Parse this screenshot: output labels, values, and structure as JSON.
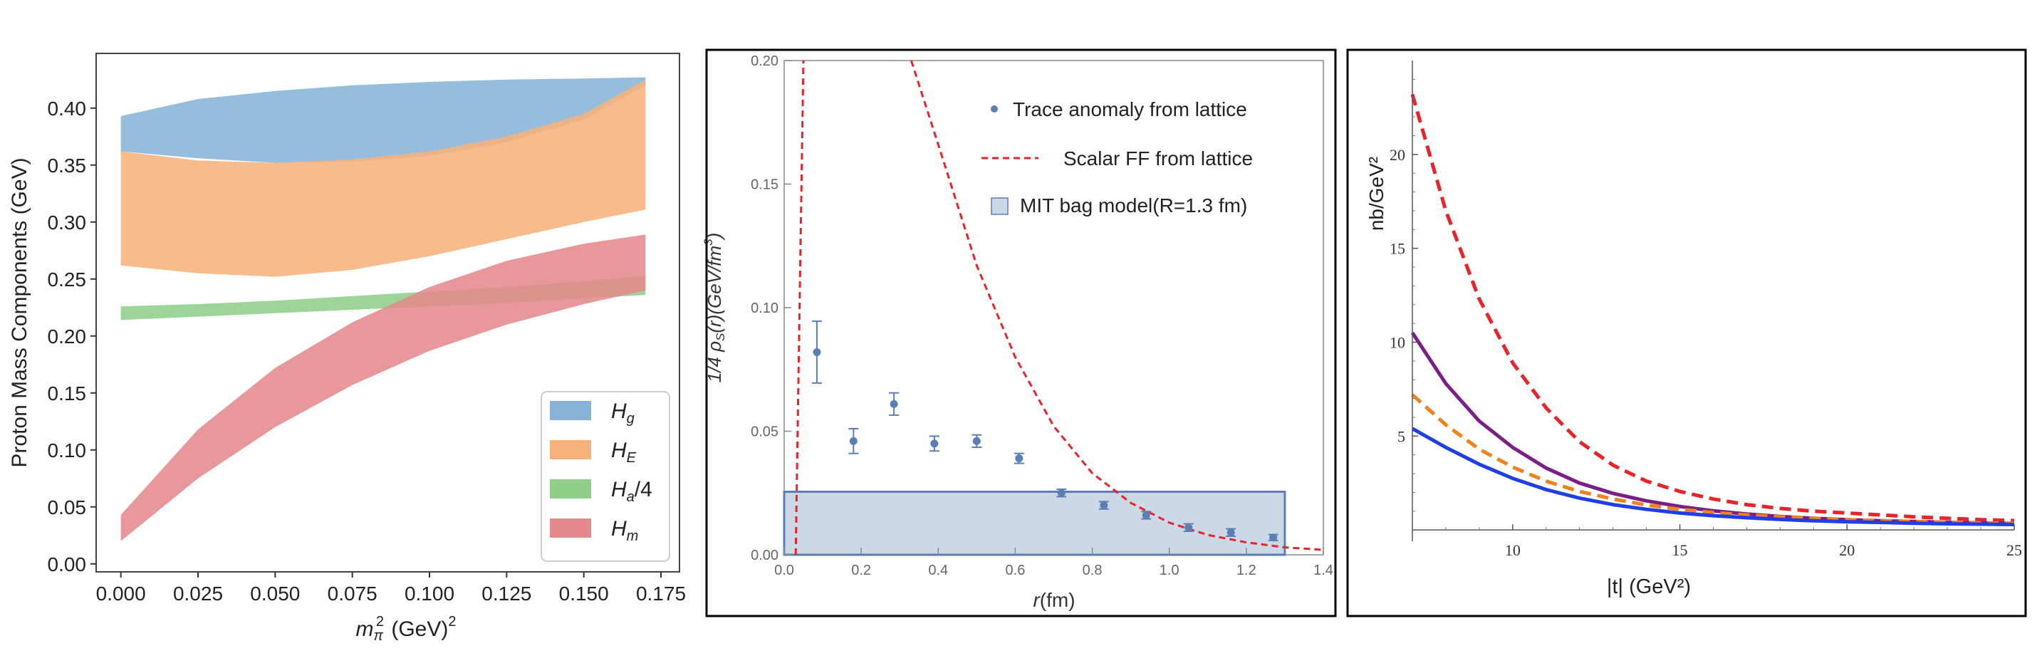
{
  "chart_data": [
    {
      "type": "area",
      "title": "",
      "xlabel": "m",
      "xlabel_sub": "π",
      "xlabel_sup": "2",
      "xlabel_units": " (GeV)",
      "xlabel_units_sup": "2",
      "ylabel": "Proton Mass Components (GeV)",
      "xlim": [
        -0.008,
        0.181
      ],
      "ylim": [
        -0.007,
        0.448
      ],
      "xticks": [
        0.0,
        0.025,
        0.05,
        0.075,
        0.1,
        0.125,
        0.15,
        0.175
      ],
      "xtick_labels": [
        "0.000",
        "0.025",
        "0.050",
        "0.075",
        "0.100",
        "0.125",
        "0.150",
        "0.175"
      ],
      "yticks": [
        0.0,
        0.05,
        0.1,
        0.15,
        0.2,
        0.25,
        0.3,
        0.35,
        0.4
      ],
      "ytick_labels": [
        "0.00",
        "0.05",
        "0.10",
        "0.15",
        "0.20",
        "0.25",
        "0.30",
        "0.35",
        "0.40"
      ],
      "legend_position": "bottom-right",
      "x": [
        0.0,
        0.025,
        0.05,
        0.075,
        0.1,
        0.125,
        0.15,
        0.17
      ],
      "series": [
        {
          "name": "H",
          "sub": "g",
          "suffix": "",
          "color": "#87b4d6",
          "upper": [
            0.393,
            0.408,
            0.415,
            0.42,
            0.423,
            0.425,
            0.426,
            0.427
          ],
          "lower": [
            0.362,
            0.356,
            0.352,
            0.353,
            0.358,
            0.37,
            0.39,
            0.42
          ]
        },
        {
          "name": "H",
          "sub": "E",
          "suffix": "",
          "color": "#f7b27c",
          "upper": [
            0.362,
            0.354,
            0.352,
            0.355,
            0.362,
            0.375,
            0.395,
            0.425
          ],
          "lower": [
            0.262,
            0.255,
            0.252,
            0.258,
            0.27,
            0.285,
            0.3,
            0.311
          ]
        },
        {
          "name": "H",
          "sub": "a",
          "suffix": "/4",
          "color": "#8fcf8a",
          "upper": [
            0.226,
            0.228,
            0.231,
            0.235,
            0.239,
            0.243,
            0.248,
            0.253
          ],
          "lower": [
            0.214,
            0.217,
            0.22,
            0.223,
            0.226,
            0.229,
            0.233,
            0.236
          ]
        },
        {
          "name": "H",
          "sub": "m",
          "suffix": "",
          "color": "#e58a8c",
          "upper": [
            0.043,
            0.118,
            0.172,
            0.212,
            0.243,
            0.266,
            0.281,
            0.289
          ],
          "lower": [
            0.02,
            0.075,
            0.12,
            0.157,
            0.187,
            0.21,
            0.228,
            0.24
          ]
        }
      ]
    },
    {
      "type": "scatter",
      "title": "",
      "xlabel": "r",
      "xlabel_units": "(fm)",
      "ylabel": "1/4 ρ",
      "ylabel_sub": "S",
      "ylabel_rest": "(r)(GeV/fm",
      "ylabel_sup": "3",
      "ylabel_end": ")",
      "xlim": [
        0.0,
        1.4
      ],
      "ylim": [
        0.0,
        0.2
      ],
      "xticks": [
        0.0,
        0.2,
        0.4,
        0.6,
        0.8,
        1.0,
        1.2,
        1.4
      ],
      "xtick_labels": [
        "0.0",
        "0.2",
        "0.4",
        "0.6",
        "0.8",
        "1.0",
        "1.2",
        "1.4"
      ],
      "yticks": [
        0.0,
        0.05,
        0.1,
        0.15,
        0.2
      ],
      "ytick_labels": [
        "0.00",
        "0.05",
        "0.10",
        "0.15",
        "0.20"
      ],
      "legend_position": "top-right",
      "legend": [
        "Trace anomaly from lattice",
        "Scalar FF from lattice",
        "MIT bag model(R=1.3 fm)"
      ],
      "lattice_points": {
        "name": "Trace anomaly from lattice",
        "color": "#5a7fb5",
        "x": [
          0.085,
          0.18,
          0.285,
          0.39,
          0.5,
          0.61,
          0.72,
          0.83,
          0.94,
          1.05,
          1.16,
          1.27
        ],
        "y": [
          0.082,
          0.046,
          0.061,
          0.045,
          0.046,
          0.039,
          0.025,
          0.02,
          0.016,
          0.011,
          0.009,
          0.007
        ],
        "err": [
          0.0125,
          0.005,
          0.0045,
          0.003,
          0.0025,
          0.002,
          0.0015,
          0.0015,
          0.0015,
          0.0015,
          0.0015,
          0.0012
        ]
      },
      "scalar_ff": {
        "name": "Scalar FF from lattice",
        "color": "#e8232a",
        "x": [
          0.03,
          0.05,
          0.1,
          0.2,
          0.33,
          0.4,
          0.5,
          0.6,
          0.7,
          0.8,
          0.9,
          1.0,
          1.1,
          1.2,
          1.3,
          1.4
        ],
        "y": [
          0.0,
          0.2,
          0.2,
          0.2,
          0.2,
          0.166,
          0.117,
          0.08,
          0.052,
          0.033,
          0.021,
          0.013,
          0.008,
          0.005,
          0.003,
          0.002
        ]
      },
      "mit_bag": {
        "name": "MIT bag model(R=1.3 fm)",
        "radius": 1.3,
        "value": 0.0255,
        "fill": "#cdd8e6",
        "stroke": "#5a7fb5"
      }
    },
    {
      "type": "line",
      "title": "",
      "xlabel": "|t|  (GeV²)",
      "ylabel": "nb/GeV²",
      "xlim": [
        7.0,
        25.0
      ],
      "ylim": [
        -0.6,
        25.0
      ],
      "xticks": [
        10,
        15,
        20,
        25
      ],
      "xtick_labels": [
        "10",
        "15",
        "20",
        "25"
      ],
      "yticks": [
        5,
        10,
        15,
        20
      ],
      "ytick_labels": [
        "5",
        "10",
        "15",
        "20"
      ],
      "x": [
        7,
        8,
        9,
        10,
        11,
        12,
        13,
        14,
        15,
        16,
        17,
        18,
        19,
        20,
        21,
        22,
        23,
        24,
        25
      ],
      "series": [
        {
          "name": "red-dashed",
          "color": "#e8232a",
          "dash": "dashed",
          "values": [
            23.2,
            17.0,
            12.3,
            8.9,
            6.5,
            4.7,
            3.45,
            2.6,
            2.05,
            1.65,
            1.35,
            1.15,
            1.0,
            0.9,
            0.8,
            0.7,
            0.62,
            0.55,
            0.5
          ]
        },
        {
          "name": "purple-solid",
          "color": "#7a1f86",
          "dash": "solid",
          "values": [
            10.5,
            7.8,
            5.8,
            4.4,
            3.3,
            2.5,
            1.95,
            1.55,
            1.25,
            1.02,
            0.85,
            0.72,
            0.62,
            0.55,
            0.49,
            0.45,
            0.41,
            0.38,
            0.35
          ]
        },
        {
          "name": "orange-dashed",
          "color": "#f0821e",
          "dash": "dashed",
          "values": [
            7.2,
            5.6,
            4.3,
            3.35,
            2.6,
            2.05,
            1.65,
            1.33,
            1.1,
            0.93,
            0.8,
            0.7,
            0.62,
            0.55,
            0.5,
            0.45,
            0.41,
            0.38,
            0.35
          ]
        },
        {
          "name": "blue-solid",
          "color": "#1f3ee8",
          "dash": "solid",
          "values": [
            5.4,
            4.4,
            3.5,
            2.75,
            2.15,
            1.7,
            1.35,
            1.1,
            0.9,
            0.76,
            0.65,
            0.56,
            0.49,
            0.44,
            0.4,
            0.36,
            0.33,
            0.31,
            0.29
          ]
        }
      ]
    }
  ]
}
